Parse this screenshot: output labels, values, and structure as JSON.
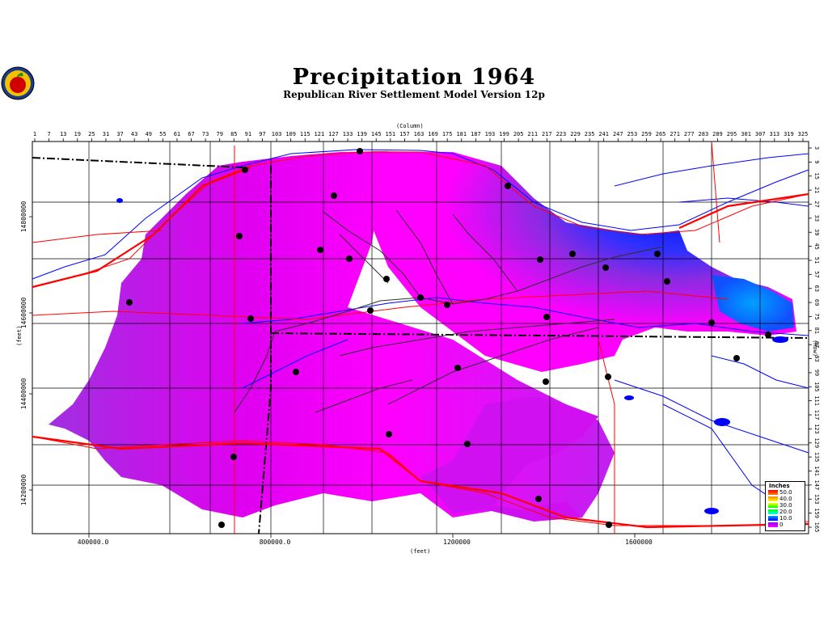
{
  "title": "Precipitation  1964",
  "subtitle": "Republican  River  Settlement  Model  Version  12p",
  "logo": {
    "icon": "apple-seal-icon"
  },
  "axes": {
    "column_label": "(Column)",
    "row_label": "(Row)",
    "x_feet_label": "(feet)",
    "y_feet_label": "(feet)",
    "column_ticks": [
      "1",
      "7",
      "13",
      "19",
      "25",
      "31",
      "37",
      "43",
      "49",
      "55",
      "61",
      "67",
      "73",
      "79",
      "85",
      "91",
      "97",
      "103",
      "109",
      "115",
      "121",
      "127",
      "133",
      "139",
      "145",
      "151",
      "157",
      "163",
      "169",
      "175",
      "181",
      "187",
      "193",
      "199",
      "205",
      "211",
      "217",
      "223",
      "229",
      "235",
      "241",
      "247",
      "253",
      "259",
      "265",
      "271",
      "277",
      "283",
      "289",
      "295",
      "301",
      "307",
      "313",
      "319",
      "325"
    ],
    "row_ticks": [
      "3",
      "9",
      "15",
      "21",
      "27",
      "33",
      "39",
      "45",
      "51",
      "57",
      "63",
      "69",
      "75",
      "81",
      "87",
      "93",
      "99",
      "105",
      "111",
      "117",
      "123",
      "129",
      "135",
      "141",
      "147",
      "153",
      "159",
      "165"
    ],
    "x_feet_ticks": [
      "400000.0",
      "800000.0",
      "1200000",
      "1600000"
    ],
    "y_feet_ticks": [
      "14800000",
      "14600000",
      "14400000",
      "14200000"
    ]
  },
  "legend": {
    "title": "Inches",
    "entries": [
      {
        "label": "50.0",
        "color": "#ff0000"
      },
      {
        "label": "40.0",
        "color": "#ffff00"
      },
      {
        "label": "30.0",
        "color": "#00ff00"
      },
      {
        "label": "20.0",
        "color": "#00ffff"
      },
      {
        "label": "10.0",
        "color": "#0000ff"
      },
      {
        "label": "0",
        "color": "#ff00ff"
      }
    ]
  },
  "colors": {
    "precip_high": "#0000e0",
    "precip_mid": "#8a2be2",
    "precip_low": "#ff00ff",
    "rivers": "#0000ff",
    "roads": "#ff0000",
    "boundaries": "#000000"
  }
}
